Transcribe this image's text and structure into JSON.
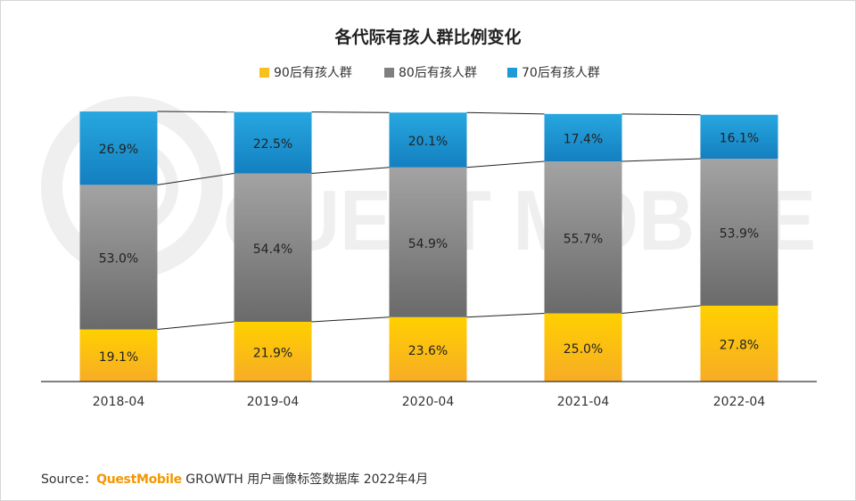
{
  "chart_data": {
    "type": "bar",
    "stacked": true,
    "title": "各代际有孩人群比例变化",
    "categories": [
      "2018-04",
      "2019-04",
      "2020-04",
      "2021-04",
      "2022-04"
    ],
    "series": [
      {
        "name": "90后有孩人群",
        "values": [
          19.1,
          21.9,
          23.6,
          25.0,
          27.8
        ],
        "labels": [
          "19.1%",
          "21.9%",
          "23.6%",
          "25.0%",
          "27.8%"
        ],
        "color": "#fbbf1b"
      },
      {
        "name": "80后有孩人群",
        "values": [
          53.0,
          54.4,
          54.9,
          55.7,
          53.9
        ],
        "labels": [
          "53.0%",
          "54.4%",
          "54.9%",
          "55.7%",
          "53.9%"
        ],
        "color": "#7f7f7f"
      },
      {
        "name": "70后有孩人群",
        "values": [
          26.9,
          22.5,
          20.1,
          17.4,
          16.1
        ],
        "labels": [
          "26.9%",
          "22.5%",
          "20.1%",
          "17.4%",
          "16.1%"
        ],
        "color": "#1e9ad6"
      }
    ],
    "legend_position": "top-center",
    "ylim": [
      0,
      100
    ],
    "watermark": "QUEST MOBILE"
  },
  "source": {
    "prefix": "Source：",
    "brand": "QuestMobile",
    "text": " GROWTH 用户画像标签数据库 2022年4月"
  },
  "colors": {
    "y90": "#fbbf1b",
    "y80": "#7f7f7f",
    "y70": "#1e9ad6"
  }
}
